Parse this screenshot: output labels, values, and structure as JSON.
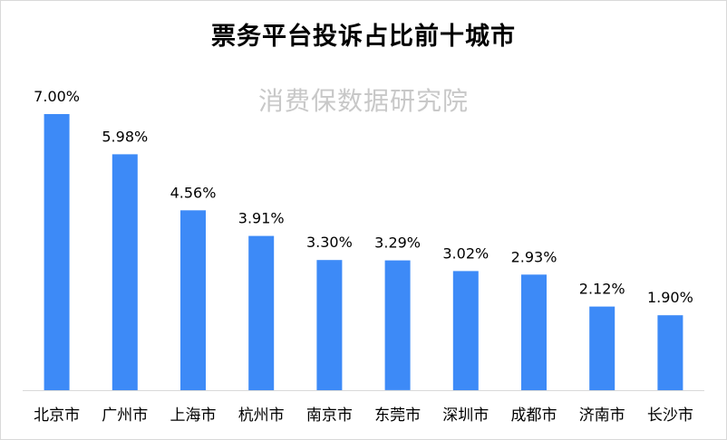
{
  "watermark": "消费保数据研究院",
  "colors": {
    "bar": "#3d8af7",
    "axis": "#d9d9d9"
  },
  "chart_data": {
    "type": "bar",
    "title": "票务平台投诉占比前十城市",
    "categories": [
      "北京市",
      "广州市",
      "上海市",
      "杭州市",
      "南京市",
      "东莞市",
      "深圳市",
      "成都市",
      "济南市",
      "长沙市"
    ],
    "values": [
      7.0,
      5.98,
      4.56,
      3.91,
      3.3,
      3.29,
      3.02,
      2.93,
      2.12,
      1.9
    ],
    "value_labels": [
      "7.00%",
      "5.98%",
      "4.56%",
      "3.91%",
      "3.30%",
      "3.29%",
      "3.02%",
      "2.93%",
      "2.12%",
      "1.90%"
    ],
    "ylim": [
      0,
      7.0
    ],
    "grid": false,
    "legend": "none"
  }
}
